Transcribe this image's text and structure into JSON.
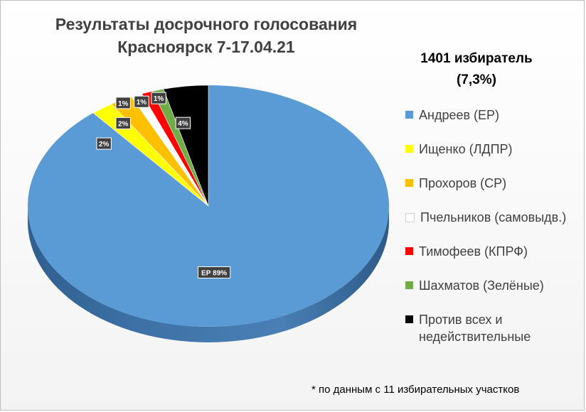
{
  "chart_data": {
    "type": "pie",
    "title": "Результаты досрочного голосования",
    "subtitle": "Красноярск 7-17.04.21",
    "voters_line1": "1401 избиратель",
    "voters_line2": "(7,3%)",
    "footnote": "* по данным с 11 избирательных участков",
    "legend_position": "right",
    "slices": [
      {
        "name": "Андреев (ЕР)",
        "value": 89,
        "color": "#5b9bd5",
        "label": "ЕР 89%"
      },
      {
        "name": "Ищенко (ЛДПР)",
        "value": 2,
        "color": "#ffff00",
        "label": "2%"
      },
      {
        "name": "Прохоров (СР)",
        "value": 2,
        "color": "#ffc000",
        "label": "2%"
      },
      {
        "name": "Пчельников (самовыдв.)",
        "value": 1,
        "color": "#ffffff",
        "label": "1%"
      },
      {
        "name": "Тимофеев  (КПРФ)",
        "value": 1,
        "color": "#ff0000",
        "label": "1%"
      },
      {
        "name": "Шахматов (Зелёные)",
        "value": 1,
        "color": "#70ad47",
        "label": "1%"
      },
      {
        "name": "Против всех и недействительные",
        "value": 4,
        "color": "#000000",
        "label": "4%"
      }
    ]
  }
}
